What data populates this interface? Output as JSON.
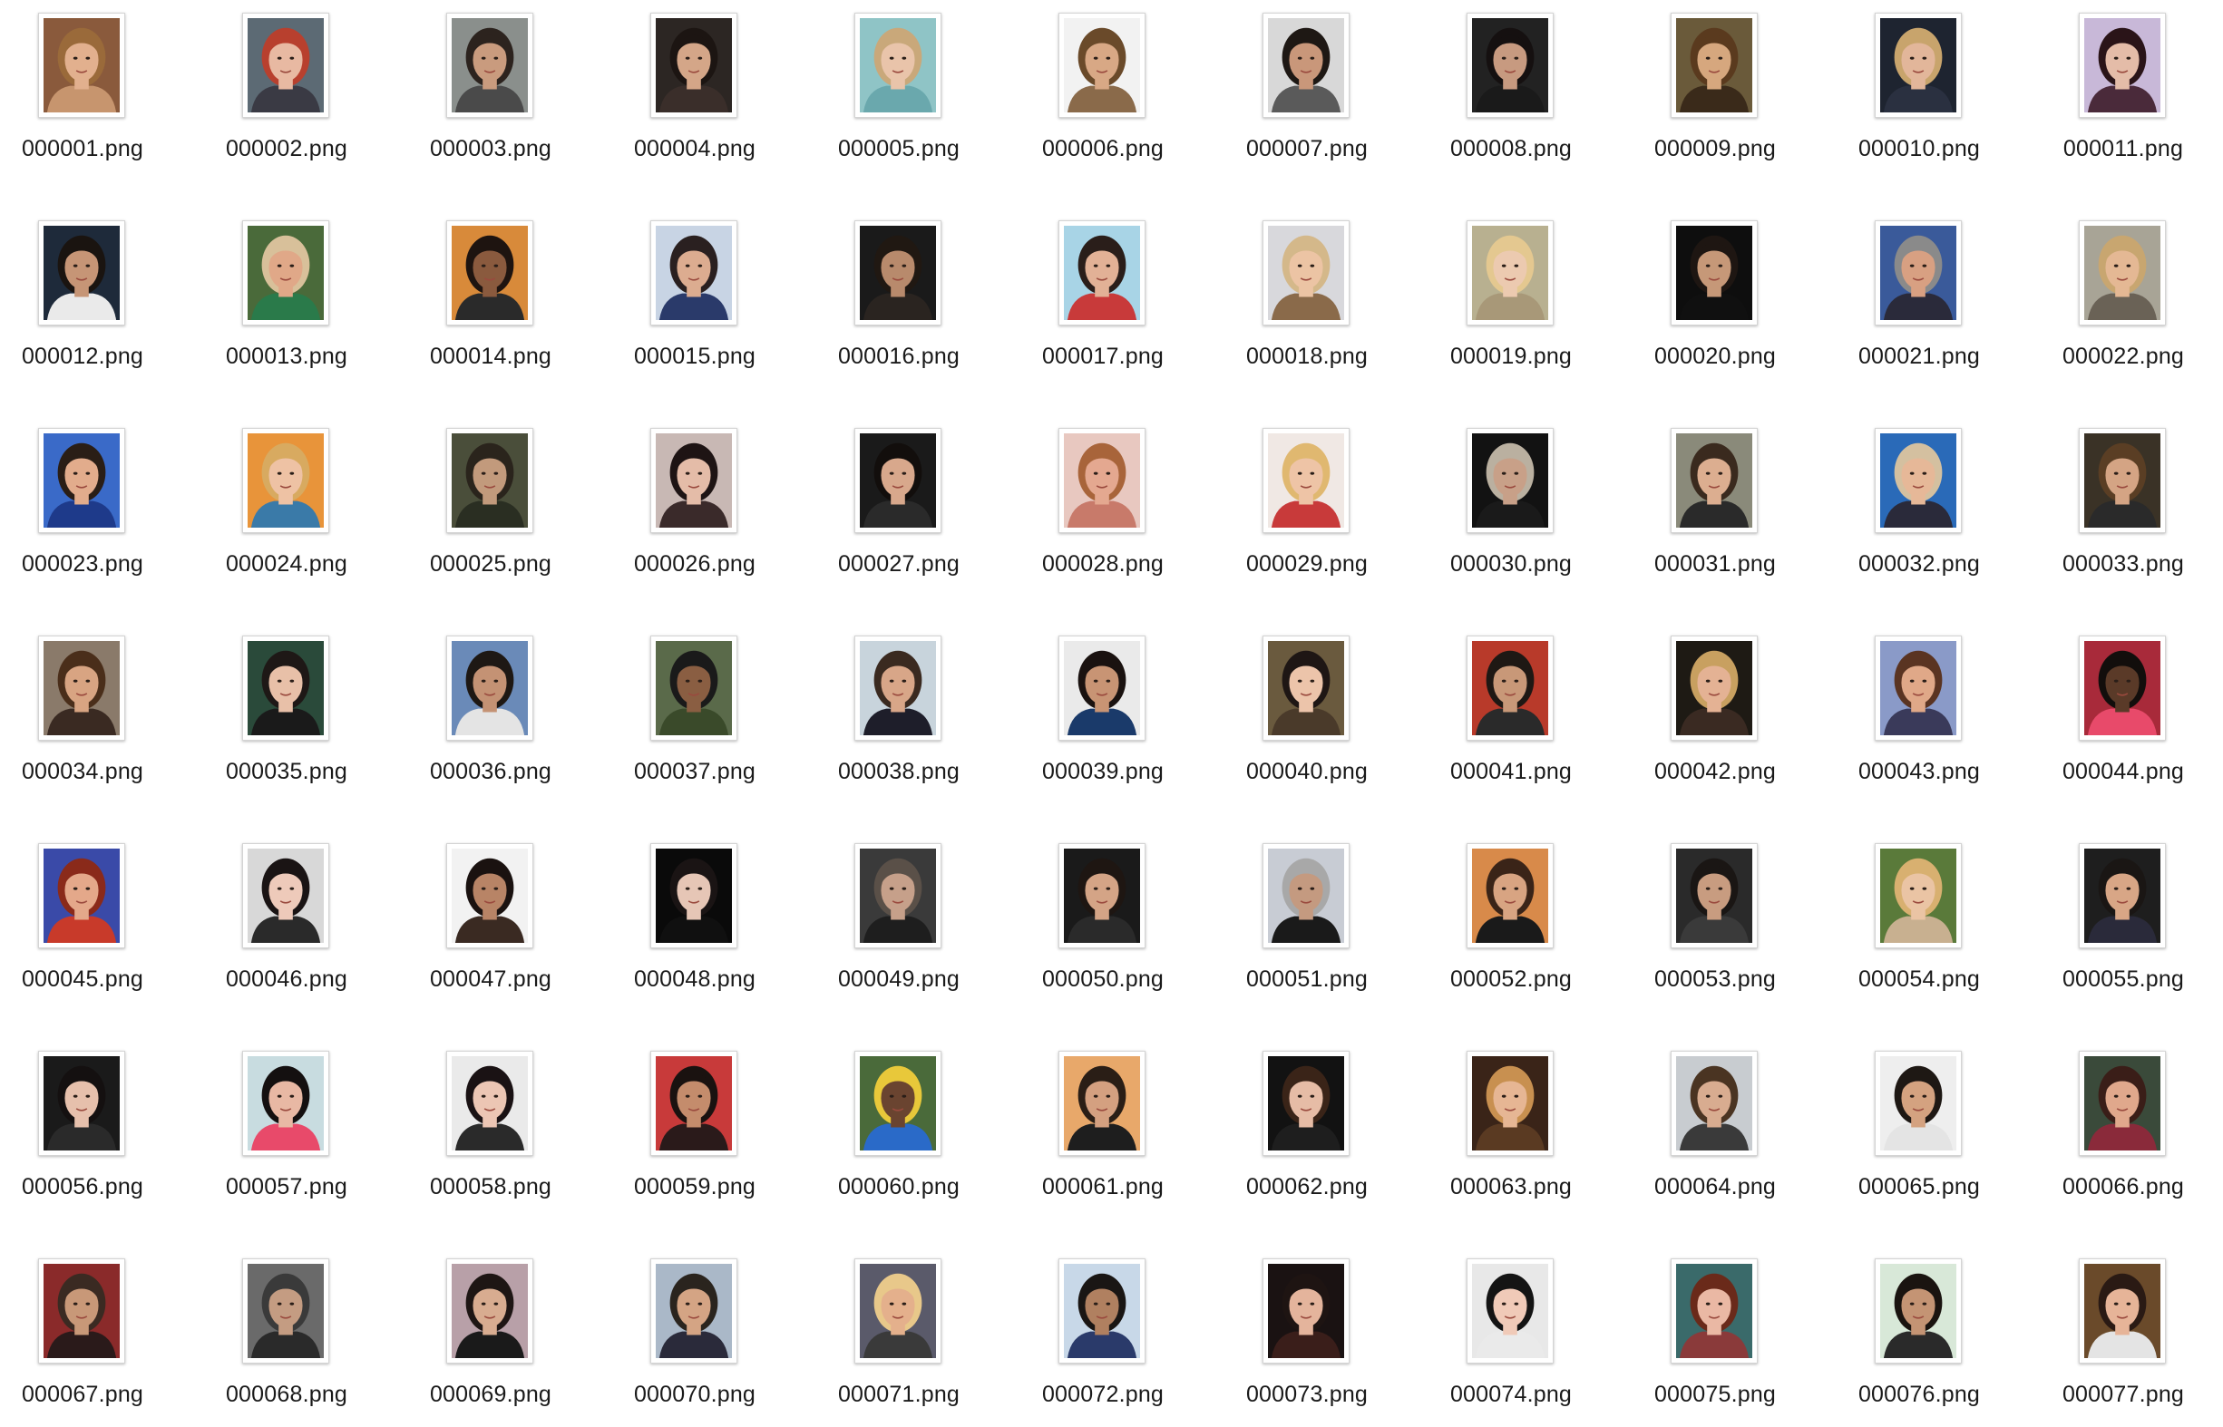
{
  "window": {
    "view": "icon-grid"
  },
  "files": [
    {
      "name": "000001.png",
      "bg": "#8a5a3c",
      "skin": "#e2b08e",
      "hair": "#9a6a3a",
      "shirt": "#c7956e",
      "icon": "portrait-thumbnail"
    },
    {
      "name": "000002.png",
      "bg": "#5c6a74",
      "skin": "#e8b9a2",
      "hair": "#b8402e",
      "shirt": "#3a3a44",
      "icon": "portrait-thumbnail"
    },
    {
      "name": "000003.png",
      "bg": "#8a8f8c",
      "skin": "#c99b7e",
      "hair": "#2c231e",
      "shirt": "#4a4a4a",
      "icon": "portrait-thumbnail"
    },
    {
      "name": "000004.png",
      "bg": "#2c2623",
      "skin": "#d4a688",
      "hair": "#1c1512",
      "shirt": "#3a2e2a",
      "icon": "portrait-thumbnail"
    },
    {
      "name": "000005.png",
      "bg": "#8fc4c6",
      "skin": "#e9c4aa",
      "hair": "#c9a87a",
      "shirt": "#6aa8ad",
      "icon": "portrait-thumbnail"
    },
    {
      "name": "000006.png",
      "bg": "#f2f2f2",
      "skin": "#d8a885",
      "hair": "#6a4a2a",
      "shirt": "#8a6a4a",
      "icon": "portrait-thumbnail"
    },
    {
      "name": "000007.png",
      "bg": "#d8d8d8",
      "skin": "#c9977a",
      "hair": "#1e1814",
      "shirt": "#5a5a5a",
      "icon": "portrait-thumbnail"
    },
    {
      "name": "000008.png",
      "bg": "#222222",
      "skin": "#c79a80",
      "hair": "#151010",
      "shirt": "#1a1a1a",
      "icon": "portrait-thumbnail"
    },
    {
      "name": "000009.png",
      "bg": "#6a5a3a",
      "skin": "#d6a77e",
      "hair": "#5a3a1e",
      "shirt": "#3a2a1a",
      "icon": "portrait-thumbnail"
    },
    {
      "name": "000010.png",
      "bg": "#1e2430",
      "skin": "#e2b69a",
      "hair": "#c8a46c",
      "shirt": "#2a3040",
      "icon": "portrait-thumbnail"
    },
    {
      "name": "000011.png",
      "bg": "#c8b8d8",
      "skin": "#e4bca8",
      "hair": "#2a1418",
      "shirt": "#4a2a3a",
      "icon": "portrait-thumbnail"
    },
    {
      "name": "000012.png",
      "bg": "#1e2a3a",
      "skin": "#c69576",
      "hair": "#1a1410",
      "shirt": "#eaeaea",
      "icon": "portrait-thumbnail"
    },
    {
      "name": "000013.png",
      "bg": "#4a6a3a",
      "skin": "#e0a888",
      "hair": "#d8c09a",
      "shirt": "#2a7a4a",
      "icon": "portrait-thumbnail"
    },
    {
      "name": "000014.png",
      "bg": "#d88a3a",
      "skin": "#8a5a3e",
      "hair": "#1e1410",
      "shirt": "#2a2a2a",
      "icon": "portrait-thumbnail"
    },
    {
      "name": "000015.png",
      "bg": "#c8d4e4",
      "skin": "#dcac90",
      "hair": "#2a2020",
      "shirt": "#2a3a6a",
      "icon": "portrait-thumbnail"
    },
    {
      "name": "000016.png",
      "bg": "#1a1a1a",
      "skin": "#b88a6c",
      "hair": "#201812",
      "shirt": "#2a2420",
      "icon": "portrait-thumbnail"
    },
    {
      "name": "000017.png",
      "bg": "#a8d4e6",
      "skin": "#e2b196",
      "hair": "#2a1e1a",
      "shirt": "#c83a3a",
      "icon": "portrait-thumbnail"
    },
    {
      "name": "000018.png",
      "bg": "#d8d8dc",
      "skin": "#ecc4a4",
      "hair": "#d4b88a",
      "shirt": "#8a6a4a",
      "icon": "portrait-thumbnail"
    },
    {
      "name": "000019.png",
      "bg": "#b8b090",
      "skin": "#eccab0",
      "hair": "#e4c890",
      "shirt": "#a89878",
      "icon": "portrait-thumbnail"
    },
    {
      "name": "000020.png",
      "bg": "#0e0e0e",
      "skin": "#c69878",
      "hair": "#1e1612",
      "shirt": "#101010",
      "icon": "portrait-thumbnail"
    },
    {
      "name": "000021.png",
      "bg": "#3a5a9a",
      "skin": "#d8a082",
      "hair": "#8a8a8a",
      "shirt": "#2a2a3a",
      "icon": "portrait-thumbnail"
    },
    {
      "name": "000022.png",
      "bg": "#a8a496",
      "skin": "#e4b894",
      "hair": "#c8a670",
      "shirt": "#6a6256",
      "icon": "portrait-thumbnail"
    },
    {
      "name": "000023.png",
      "bg": "#3a6ac8",
      "skin": "#e2ac8c",
      "hair": "#2a1e16",
      "shirt": "#1e3a8a",
      "icon": "portrait-thumbnail"
    },
    {
      "name": "000024.png",
      "bg": "#e8943a",
      "skin": "#eec2a4",
      "hair": "#d8aa60",
      "shirt": "#3a7aa8",
      "icon": "portrait-thumbnail"
    },
    {
      "name": "000025.png",
      "bg": "#4a4e3a",
      "skin": "#c29a7c",
      "hair": "#2a241c",
      "shirt": "#2a2e22",
      "icon": "portrait-thumbnail"
    },
    {
      "name": "000026.png",
      "bg": "#c8b8b4",
      "skin": "#e4bca8",
      "hair": "#1e1414",
      "shirt": "#3a2a2a",
      "icon": "portrait-thumbnail"
    },
    {
      "name": "000027.png",
      "bg": "#1a1a1a",
      "skin": "#d8a88c",
      "hair": "#120e0c",
      "shirt": "#2a2a2a",
      "icon": "portrait-thumbnail"
    },
    {
      "name": "000028.png",
      "bg": "#e8c8c0",
      "skin": "#e4a890",
      "hair": "#a8643a",
      "shirt": "#c87a6a",
      "icon": "portrait-thumbnail"
    },
    {
      "name": "000029.png",
      "bg": "#f0e8e4",
      "skin": "#eec4a6",
      "hair": "#e0b870",
      "shirt": "#c83a3a",
      "icon": "portrait-thumbnail"
    },
    {
      "name": "000030.png",
      "bg": "#121212",
      "skin": "#c8a088",
      "hair": "#bab0a0",
      "shirt": "#1a1a1a",
      "icon": "portrait-thumbnail"
    },
    {
      "name": "000031.png",
      "bg": "#8a8a7a",
      "skin": "#dcae90",
      "hair": "#3a2a1e",
      "shirt": "#2a2a2a",
      "icon": "portrait-thumbnail"
    },
    {
      "name": "000032.png",
      "bg": "#2a6ab8",
      "skin": "#e6b898",
      "hair": "#d4c0a0",
      "shirt": "#2a2a3a",
      "icon": "portrait-thumbnail"
    },
    {
      "name": "000033.png",
      "bg": "#3a3226",
      "skin": "#d4a484",
      "hair": "#5a3e24",
      "shirt": "#2a2a2a",
      "icon": "portrait-thumbnail"
    },
    {
      "name": "000034.png",
      "bg": "#8a7a6a",
      "skin": "#d8a482",
      "hair": "#4a2e1a",
      "shirt": "#3a2a22",
      "icon": "portrait-thumbnail"
    },
    {
      "name": "000035.png",
      "bg": "#2a4a3a",
      "skin": "#e8c0a8",
      "hair": "#1e1816",
      "shirt": "#1a1a1a",
      "icon": "portrait-thumbnail"
    },
    {
      "name": "000036.png",
      "bg": "#6a8ab8",
      "skin": "#c49274",
      "hair": "#1e1814",
      "shirt": "#e4e4e4",
      "icon": "portrait-thumbnail"
    },
    {
      "name": "000037.png",
      "bg": "#5a6a4a",
      "skin": "#8a5e42",
      "hair": "#1a1a1a",
      "shirt": "#3a4a2a",
      "icon": "portrait-thumbnail"
    },
    {
      "name": "000038.png",
      "bg": "#c8d4dc",
      "skin": "#d8a688",
      "hair": "#3a2a20",
      "shirt": "#1e1e2a",
      "icon": "portrait-thumbnail"
    },
    {
      "name": "000039.png",
      "bg": "#eaeaea",
      "skin": "#c89474",
      "hair": "#1a1210",
      "shirt": "#1a3a6a",
      "icon": "portrait-thumbnail"
    },
    {
      "name": "000040.png",
      "bg": "#6a5a3e",
      "skin": "#ecc4aa",
      "hair": "#1e1614",
      "shirt": "#4a3a2a",
      "icon": "portrait-thumbnail"
    },
    {
      "name": "000041.png",
      "bg": "#b83a2a",
      "skin": "#c89878",
      "hair": "#1e1814",
      "shirt": "#2a2a2a",
      "icon": "portrait-thumbnail"
    },
    {
      "name": "000042.png",
      "bg": "#1e1a14",
      "skin": "#e4b294",
      "hair": "#c8a060",
      "shirt": "#3a2a22",
      "icon": "portrait-thumbnail"
    },
    {
      "name": "000043.png",
      "bg": "#8a9ac8",
      "skin": "#e0a888",
      "hair": "#5a3422",
      "shirt": "#3a3a5a",
      "icon": "portrait-thumbnail"
    },
    {
      "name": "000044.png",
      "bg": "#a82a3a",
      "skin": "#5a3a28",
      "hair": "#120e0c",
      "shirt": "#e84a6a",
      "icon": "portrait-thumbnail"
    },
    {
      "name": "000045.png",
      "bg": "#3a4aa8",
      "skin": "#e4a88a",
      "hair": "#8a2a1a",
      "shirt": "#c83a2a",
      "icon": "portrait-thumbnail"
    },
    {
      "name": "000046.png",
      "bg": "#d8d8d8",
      "skin": "#eecaba",
      "hair": "#1a1414",
      "shirt": "#2a2a2a",
      "icon": "portrait-thumbnail"
    },
    {
      "name": "000047.png",
      "bg": "#f2f2f2",
      "skin": "#b88466",
      "hair": "#1a1210",
      "shirt": "#3a2a22",
      "icon": "portrait-thumbnail"
    },
    {
      "name": "000048.png",
      "bg": "#0a0a0a",
      "skin": "#e6c6b6",
      "hair": "#1a1414",
      "shirt": "#101010",
      "icon": "portrait-thumbnail"
    },
    {
      "name": "000049.png",
      "bg": "#3a3a3a",
      "skin": "#c6a08a",
      "hair": "#5a5048",
      "shirt": "#1e1e1e",
      "icon": "portrait-thumbnail"
    },
    {
      "name": "000050.png",
      "bg": "#1a1a1a",
      "skin": "#d4a486",
      "hair": "#1e1612",
      "shirt": "#2a2a2a",
      "icon": "portrait-thumbnail"
    },
    {
      "name": "000051.png",
      "bg": "#c8ccd4",
      "skin": "#c49a80",
      "hair": "#a8a8a8",
      "shirt": "#1a1a1a",
      "icon": "portrait-thumbnail"
    },
    {
      "name": "000052.png",
      "bg": "#d88a4a",
      "skin": "#d8a482",
      "hair": "#3a2418",
      "shirt": "#1a1a1a",
      "icon": "portrait-thumbnail"
    },
    {
      "name": "000053.png",
      "bg": "#2a2a2a",
      "skin": "#c89c80",
      "hair": "#1a1614",
      "shirt": "#3a3a3a",
      "icon": "portrait-thumbnail"
    },
    {
      "name": "000054.png",
      "bg": "#5a7a3a",
      "skin": "#eac4a4",
      "hair": "#d8b070",
      "shirt": "#c8b090",
      "icon": "portrait-thumbnail"
    },
    {
      "name": "000055.png",
      "bg": "#1e1e1e",
      "skin": "#d8a686",
      "hair": "#1a1614",
      "shirt": "#2a2a3a",
      "icon": "portrait-thumbnail"
    },
    {
      "name": "000056.png",
      "bg": "#1a1a1a",
      "skin": "#e6c0ac",
      "hair": "#141010",
      "shirt": "#2a2a2a",
      "icon": "portrait-thumbnail"
    },
    {
      "name": "000057.png",
      "bg": "#c8dce0",
      "skin": "#e8b8a4",
      "hair": "#141010",
      "shirt": "#e84a6a",
      "icon": "portrait-thumbnail"
    },
    {
      "name": "000058.png",
      "bg": "#eaeaea",
      "skin": "#ecc6b4",
      "hair": "#1a1214",
      "shirt": "#2a2a2a",
      "icon": "portrait-thumbnail"
    },
    {
      "name": "000059.png",
      "bg": "#c83a3a",
      "skin": "#c48c6c",
      "hair": "#1a1210",
      "shirt": "#2a1a1a",
      "icon": "portrait-thumbnail"
    },
    {
      "name": "000060.png",
      "bg": "#4a6a3a",
      "skin": "#6a4430",
      "hair": "#e8c83a",
      "shirt": "#2a6ac8",
      "icon": "portrait-thumbnail"
    },
    {
      "name": "000061.png",
      "bg": "#e8a86a",
      "skin": "#d4a080",
      "hair": "#2a1e16",
      "shirt": "#1e1e1e",
      "icon": "portrait-thumbnail"
    },
    {
      "name": "000062.png",
      "bg": "#121212",
      "skin": "#e6bca6",
      "hair": "#3a2418",
      "shirt": "#1e1e1e",
      "icon": "portrait-thumbnail"
    },
    {
      "name": "000063.png",
      "bg": "#3a2418",
      "skin": "#e6b694",
      "hair": "#c89050",
      "shirt": "#5a3a22",
      "icon": "portrait-thumbnail"
    },
    {
      "name": "000064.png",
      "bg": "#c8ccd0",
      "skin": "#d8ac90",
      "hair": "#4a3422",
      "shirt": "#3a3a3a",
      "icon": "portrait-thumbnail"
    },
    {
      "name": "000065.png",
      "bg": "#eeeeee",
      "skin": "#d4a280",
      "hair": "#1e1814",
      "shirt": "#e4e4e4",
      "icon": "portrait-thumbnail"
    },
    {
      "name": "000066.png",
      "bg": "#3a4a3a",
      "skin": "#e0a88c",
      "hair": "#3a1e18",
      "shirt": "#8a2a3a",
      "icon": "portrait-thumbnail"
    },
    {
      "name": "000067.png",
      "bg": "#8a2a2a",
      "skin": "#c89878",
      "hair": "#3a2a22",
      "shirt": "#2a1a1a",
      "icon": "portrait-thumbnail"
    },
    {
      "name": "000068.png",
      "bg": "#6a6a6a",
      "skin": "#c49c82",
      "hair": "#3a3a3a",
      "shirt": "#2a2a2a",
      "icon": "portrait-thumbnail"
    },
    {
      "name": "000069.png",
      "bg": "#b8a0a8",
      "skin": "#d8ac90",
      "hair": "#1e1614",
      "shirt": "#1a1a1a",
      "icon": "portrait-thumbnail"
    },
    {
      "name": "000070.png",
      "bg": "#aab8c8",
      "skin": "#d4a484",
      "hair": "#2a241e",
      "shirt": "#2a2a3a",
      "icon": "portrait-thumbnail"
    },
    {
      "name": "000071.png",
      "bg": "#5a5a6a",
      "skin": "#e4b08c",
      "hair": "#e8c88a",
      "shirt": "#3a3a3a",
      "icon": "portrait-thumbnail"
    },
    {
      "name": "000072.png",
      "bg": "#c8d8e8",
      "skin": "#b08060",
      "hair": "#1a1614",
      "shirt": "#2a3a6a",
      "icon": "portrait-thumbnail"
    },
    {
      "name": "000073.png",
      "bg": "#1a1212",
      "skin": "#e4b49c",
      "hair": "#1e1412",
      "shirt": "#3a1e1a",
      "icon": "portrait-thumbnail"
    },
    {
      "name": "000074.png",
      "bg": "#e8e8e8",
      "skin": "#f0cab8",
      "hair": "#141414",
      "shirt": "#eaeaea",
      "icon": "portrait-thumbnail"
    },
    {
      "name": "000075.png",
      "bg": "#3a6a6a",
      "skin": "#eab8a4",
      "hair": "#6a2a1a",
      "shirt": "#8a3a3a",
      "icon": "portrait-thumbnail"
    },
    {
      "name": "000076.png",
      "bg": "#d8e8d8",
      "skin": "#c49474",
      "hair": "#1a1410",
      "shirt": "#2a2a2a",
      "icon": "portrait-thumbnail"
    },
    {
      "name": "000077.png",
      "bg": "#6a4a2a",
      "skin": "#e6b498",
      "hair": "#2a1a14",
      "shirt": "#e4e4e4",
      "icon": "portrait-thumbnail"
    }
  ]
}
